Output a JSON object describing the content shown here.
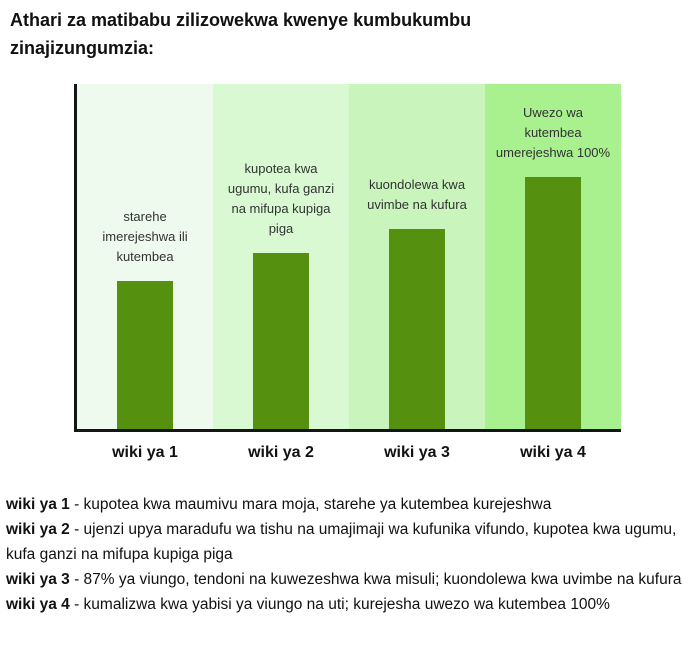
{
  "title": "Athari za matibabu zilizowekwa kwenye kumbukumbu zinajizungumzia:",
  "chart_data": {
    "type": "bar",
    "categories": [
      "wiki ya 1",
      "wiki ya 2",
      "wiki ya 3",
      "wiki ya 4"
    ],
    "values": [
      43,
      51,
      58,
      73
    ],
    "ylim": [
      0,
      100
    ],
    "grid": false,
    "legend": "none",
    "xlabel": "",
    "ylabel": "",
    "bar_labels": [
      "starehe imerejeshwa ili kutembea",
      "kupotea kwa ugumu, kufa ganzi na mifupa kupiga piga",
      "kuondolewa kwa uvimbe na kufura",
      "Uwezo wa kutembea umerejeshwa 100%"
    ],
    "bar_color": "#55900e",
    "band_colors": [
      "#eefaed",
      "#d9f9d2",
      "#c9f5bc",
      "#a8f18e"
    ],
    "axis_color": "#151515"
  },
  "descriptions": [
    {
      "label": "wiki ya 1",
      "text": " - kupotea kwa maumivu mara moja, starehe ya kutembea kurejeshwa"
    },
    {
      "label": "wiki ya 2",
      "text": " - ujenzi upya maradufu wa tishu na umajimaji wa kufunika vifundo, kupotea kwa ugumu, kufa ganzi na mifupa kupiga piga"
    },
    {
      "label": "wiki ya 3",
      "text": " - 87% ya viungo, tendoni na kuwezeshwa kwa misuli; kuondolewa kwa uvimbe na kufura"
    },
    {
      "label": "wiki ya 4",
      "text": " - kumalizwa kwa yabisi ya viungo na uti; kurejesha uwezo wa kutembea 100%"
    }
  ]
}
